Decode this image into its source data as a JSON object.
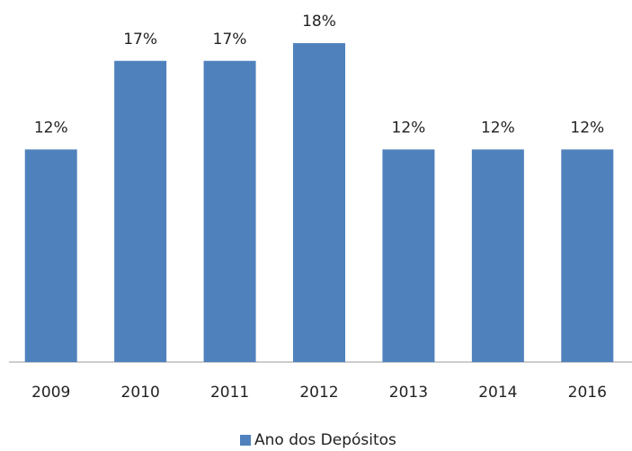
{
  "chart_data": {
    "type": "bar",
    "categories": [
      "2009",
      "2010",
      "2011",
      "2012",
      "2013",
      "2014",
      "2016"
    ],
    "series": [
      {
        "name": "Ano dos Depósitos",
        "color": "#4f81bd",
        "values": [
          12,
          17,
          17,
          18,
          12,
          12,
          12
        ],
        "value_labels": [
          "12%",
          "17%",
          "17%",
          "18%",
          "12%",
          "12%",
          "12%"
        ]
      }
    ],
    "legend": "bottom"
  }
}
